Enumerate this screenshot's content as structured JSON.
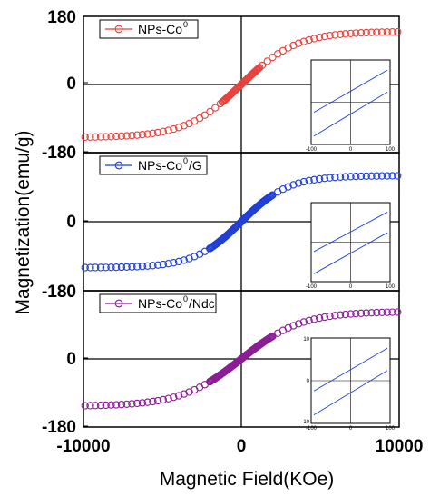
{
  "chart_data": {
    "type": "scatter",
    "layout": "three vertically stacked panels sharing one x-axis",
    "xlabel": "Magnetic Field(KOe)",
    "ylabel": "Magnetization(emu/g)",
    "xlim": [
      -10000,
      10000
    ],
    "x_ticks": [
      "-10000",
      "0",
      "10000"
    ],
    "y_ticks_top": [
      "180",
      "0",
      "-180"
    ],
    "y_ticks_mid": [
      "-180",
      "0",
      "-180"
    ],
    "y_ticks_bottom": [
      "-180",
      "0",
      "-180"
    ],
    "ylim": [
      -180,
      180
    ],
    "grid": false,
    "reference_lines": "horizontal line at y=0 and vertical line at x=0 in each panel",
    "marker": "open circle",
    "panels": [
      {
        "legend": "NPs-Co",
        "legend_sup": "0",
        "legend_suffix": "",
        "color": "#e8423c",
        "ms": 140,
        "k": 3500,
        "x_min": -9900,
        "x_max": 9900,
        "dense_half_width": 1200,
        "inset": {
          "x_ticks": [
            "-100",
            "0",
            "100"
          ],
          "y_ticks": []
        }
      },
      {
        "legend": "NPs-Co",
        "legend_sup": "0",
        "legend_suffix": "/G",
        "color": "#1f3fd6",
        "ms": 120,
        "k": 3000,
        "x_min": -9900,
        "x_max": 9900,
        "dense_half_width": 2000,
        "inset": {
          "x_ticks": [
            "-100",
            "0",
            "100"
          ],
          "y_ticks": []
        }
      },
      {
        "legend": "NPs-Co",
        "legend_sup": "0",
        "legend_suffix": "/Ndc",
        "color": "#8a1d96",
        "ms": 125,
        "k": 3800,
        "x_min": -9900,
        "x_max": 9900,
        "dense_half_width": 2000,
        "inset": {
          "x_ticks": [
            "-100",
            "0",
            "100"
          ],
          "y_ticks": [
            "10",
            "0",
            "-10"
          ]
        }
      }
    ]
  }
}
